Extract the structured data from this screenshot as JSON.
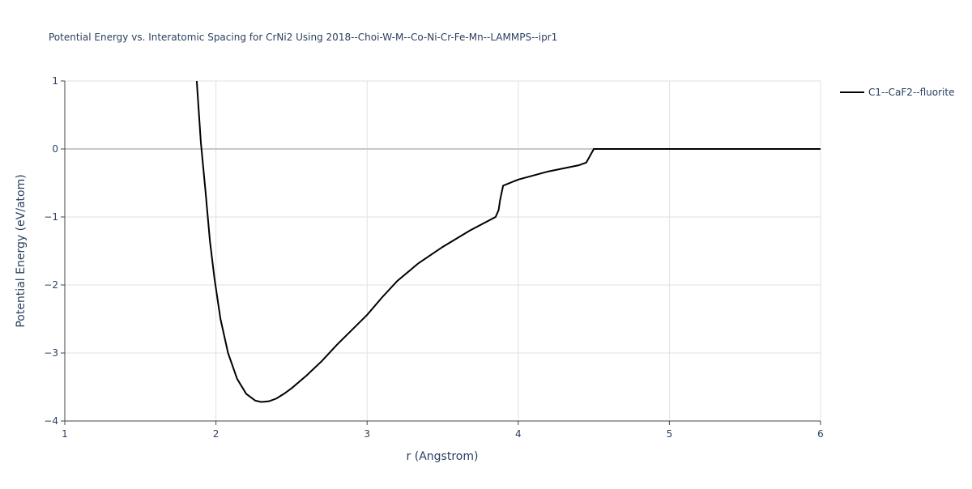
{
  "chart_data": {
    "type": "line",
    "title": "Potential Energy vs. Interatomic Spacing for CrNi2 Using 2018--Choi-W-M--Co-Ni-Cr-Fe-Mn--LAMMPS--ipr1",
    "x_label": "r (Angstrom)",
    "y_label": "Potential Energy (eV/atom)",
    "x": [
      1.873,
      1.9,
      1.93,
      1.96,
      1.99,
      2.03,
      2.08,
      2.14,
      2.2,
      2.26,
      2.3,
      2.35,
      2.4,
      2.45,
      2.5,
      2.6,
      2.7,
      2.8,
      2.9,
      3.0,
      3.1,
      3.2,
      3.34,
      3.5,
      3.68,
      3.85,
      3.87,
      3.88,
      3.9,
      4.0,
      4.2,
      4.4,
      4.45,
      4.47,
      4.5,
      5.0,
      5.5,
      6.0
    ],
    "series": [
      {
        "name": "C1--CaF2--fluorite",
        "color": "#000000",
        "values": [
          1.0,
          0.1,
          -0.6,
          -1.35,
          -1.9,
          -2.5,
          -3.0,
          -3.38,
          -3.6,
          -3.7,
          -3.72,
          -3.71,
          -3.67,
          -3.6,
          -3.52,
          -3.33,
          -3.12,
          -2.88,
          -2.66,
          -2.44,
          -2.18,
          -1.94,
          -1.68,
          -1.44,
          -1.2,
          -1.0,
          -0.9,
          -0.75,
          -0.54,
          -0.45,
          -0.33,
          -0.24,
          -0.2,
          -0.12,
          0,
          0,
          0,
          0
        ]
      }
    ],
    "xlim": [
      1,
      6
    ],
    "ylim": [
      -4,
      1
    ],
    "xticks": [
      1,
      2,
      3,
      4,
      5,
      6
    ],
    "yticks": [
      {
        "value": -4,
        "label": "−4"
      },
      {
        "value": -3,
        "label": "−3"
      },
      {
        "value": -2,
        "label": "−2"
      },
      {
        "value": -1,
        "label": "−1"
      },
      0,
      1
    ],
    "grid": true
  }
}
